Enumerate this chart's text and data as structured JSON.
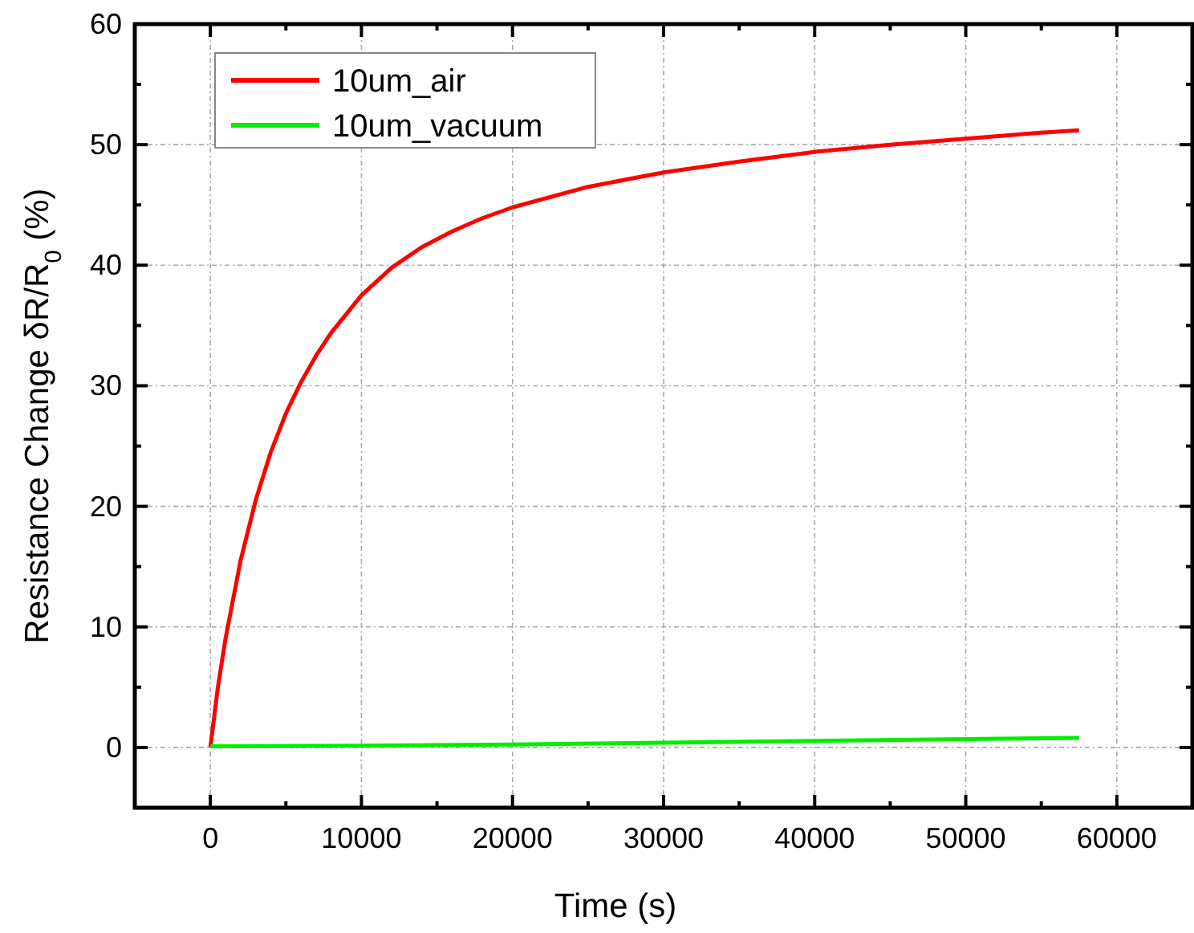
{
  "chart_data": {
    "type": "line",
    "xlabel": "Time (s)",
    "ylabel": "Resistance Change δR/R$_{0}$ (%)",
    "xlim": [
      -5000,
      65000
    ],
    "ylim": [
      -5,
      60
    ],
    "xticks": [
      0,
      {
        "value": 5000,
        "label": null
      },
      10000,
      {
        "value": 15000,
        "label": null
      },
      20000,
      {
        "value": 25000,
        "label": null
      },
      30000,
      {
        "value": 35000,
        "label": null
      },
      40000,
      {
        "value": 45000,
        "label": null
      },
      50000,
      {
        "value": 55000,
        "label": null
      },
      60000
    ],
    "yticks": [
      0,
      {
        "value": 5,
        "label": null
      },
      10,
      {
        "value": 15,
        "label": null
      },
      20,
      {
        "value": 25,
        "label": null
      },
      30,
      {
        "value": 35,
        "label": null
      },
      40,
      {
        "value": 45,
        "label": null
      },
      50,
      {
        "value": 55,
        "label": null
      },
      60
    ],
    "grid": true,
    "legend": "top left",
    "line_style": "solid",
    "marker": "none",
    "series": [
      {
        "name": "10um_air",
        "color": "#ff0000",
        "x": [
          0,
          500,
          1000,
          2000,
          3000,
          4000,
          5000,
          6000,
          7000,
          8000,
          10000,
          12000,
          14000,
          16000,
          18000,
          20000,
          25000,
          30000,
          35000,
          40000,
          45000,
          50000,
          55000,
          57500
        ],
        "values": [
          0,
          5,
          9,
          15.5,
          20.5,
          24.5,
          27.7,
          30.3,
          32.5,
          34.4,
          37.5,
          39.8,
          41.5,
          42.8,
          43.9,
          44.8,
          46.5,
          47.7,
          48.6,
          49.4,
          50,
          50.5,
          51,
          51.2
        ]
      },
      {
        "name": "10um_vacuum",
        "color": "#00ee00",
        "x": [
          0,
          10000,
          20000,
          30000,
          40000,
          50000,
          57500
        ],
        "values": [
          0.1,
          0.15,
          0.25,
          0.4,
          0.55,
          0.7,
          0.8
        ]
      }
    ]
  }
}
